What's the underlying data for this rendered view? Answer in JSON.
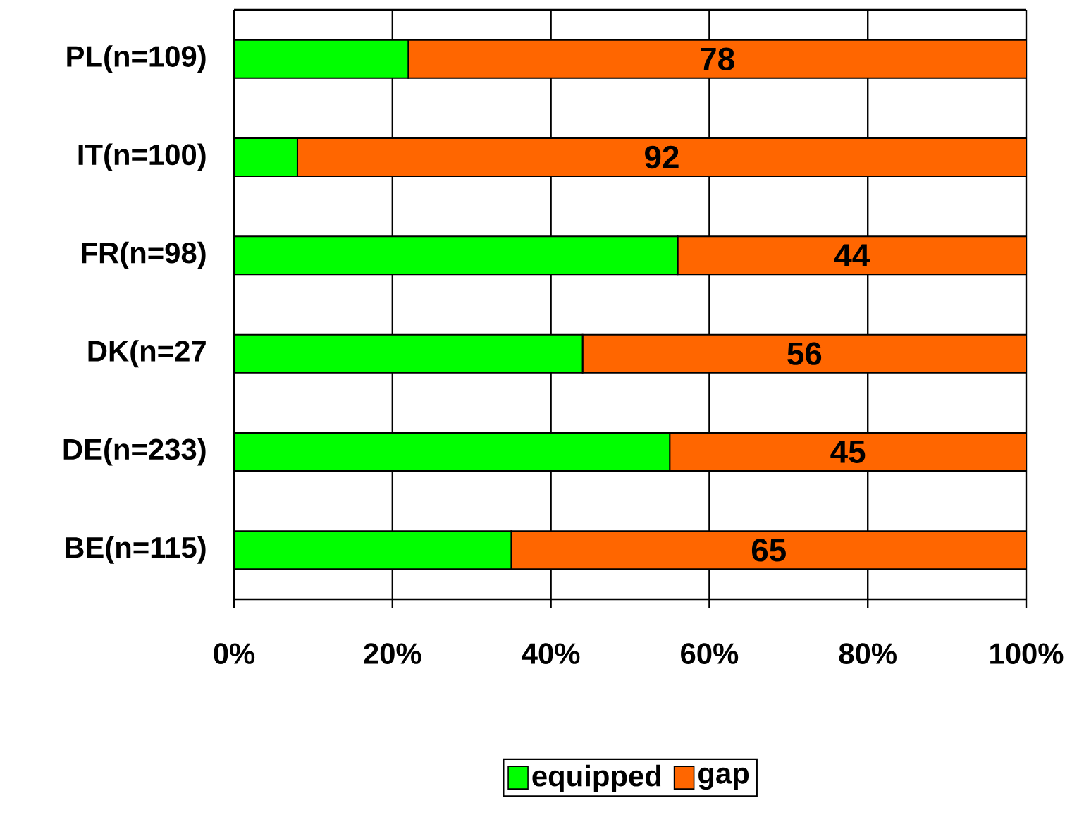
{
  "chart_data": {
    "type": "bar",
    "orientation": "horizontal",
    "stacked": true,
    "categories": [
      "PL(n=109)",
      "IT(n=100)",
      "FR(n=98)",
      "DK(n=27",
      "DE(n=233)",
      "BE(n=115)"
    ],
    "series": [
      {
        "name": "equipped",
        "color": "#00ff00",
        "values": [
          22,
          8,
          56,
          44,
          55,
          35
        ]
      },
      {
        "name": "gap",
        "color": "#ff6600",
        "values": [
          78,
          92,
          44,
          56,
          45,
          65
        ],
        "value_labels": [
          "78",
          "92",
          "44",
          "56",
          "45",
          "65"
        ]
      }
    ],
    "xlim": [
      0,
      100
    ],
    "xticks": [
      {
        "value": 0,
        "label": "0%"
      },
      {
        "value": 20,
        "label": "20%"
      },
      {
        "value": 40,
        "label": "40%"
      },
      {
        "value": 60,
        "label": "60%"
      },
      {
        "value": 80,
        "label": "80%"
      },
      {
        "value": 100,
        "label": "100%"
      }
    ],
    "grid": "x",
    "legend": "bottom"
  }
}
